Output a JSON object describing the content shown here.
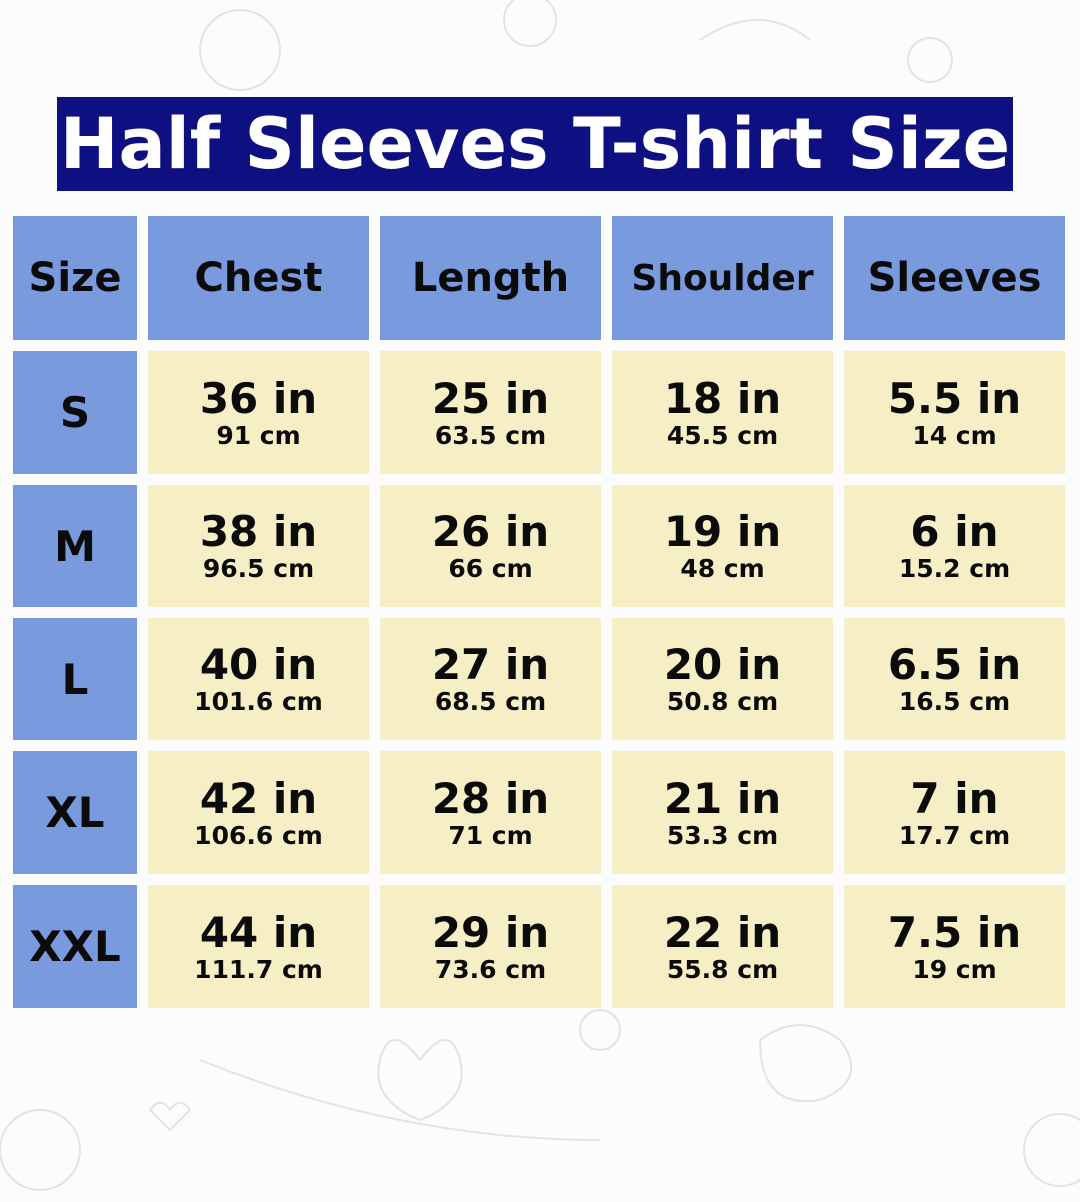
{
  "title": "Half Sleeves T-shirt Size",
  "colors": {
    "title_bg": "#0e0f80",
    "header_bg": "#7a9ade",
    "cell_bg": "#f6efc6"
  },
  "columns": [
    "Size",
    "Chest",
    "Length",
    "Shoulder",
    "Sleeves"
  ],
  "rows": [
    {
      "size": "S",
      "values": [
        {
          "in": "36 in",
          "cm": "91 cm"
        },
        {
          "in": "25 in",
          "cm": "63.5 cm"
        },
        {
          "in": "18 in",
          "cm": "45.5 cm"
        },
        {
          "in": "5.5 in",
          "cm": "14 cm"
        }
      ]
    },
    {
      "size": "M",
      "values": [
        {
          "in": "38 in",
          "cm": "96.5 cm"
        },
        {
          "in": "26 in",
          "cm": "66 cm"
        },
        {
          "in": "19 in",
          "cm": "48 cm"
        },
        {
          "in": "6 in",
          "cm": "15.2 cm"
        }
      ]
    },
    {
      "size": "L",
      "values": [
        {
          "in": "40 in",
          "cm": "101.6 cm"
        },
        {
          "in": "27 in",
          "cm": "68.5 cm"
        },
        {
          "in": "20 in",
          "cm": "50.8 cm"
        },
        {
          "in": "6.5 in",
          "cm": "16.5 cm"
        }
      ]
    },
    {
      "size": "XL",
      "values": [
        {
          "in": "42 in",
          "cm": "106.6 cm"
        },
        {
          "in": "28 in",
          "cm": "71 cm"
        },
        {
          "in": "21 in",
          "cm": "53.3 cm"
        },
        {
          "in": "7 in",
          "cm": "17.7 cm"
        }
      ]
    },
    {
      "size": "XXL",
      "values": [
        {
          "in": "44 in",
          "cm": "111.7 cm"
        },
        {
          "in": "29 in",
          "cm": "73.6 cm"
        },
        {
          "in": "22 in",
          "cm": "55.8 cm"
        },
        {
          "in": "7.5 in",
          "cm": "19 cm"
        }
      ]
    }
  ]
}
